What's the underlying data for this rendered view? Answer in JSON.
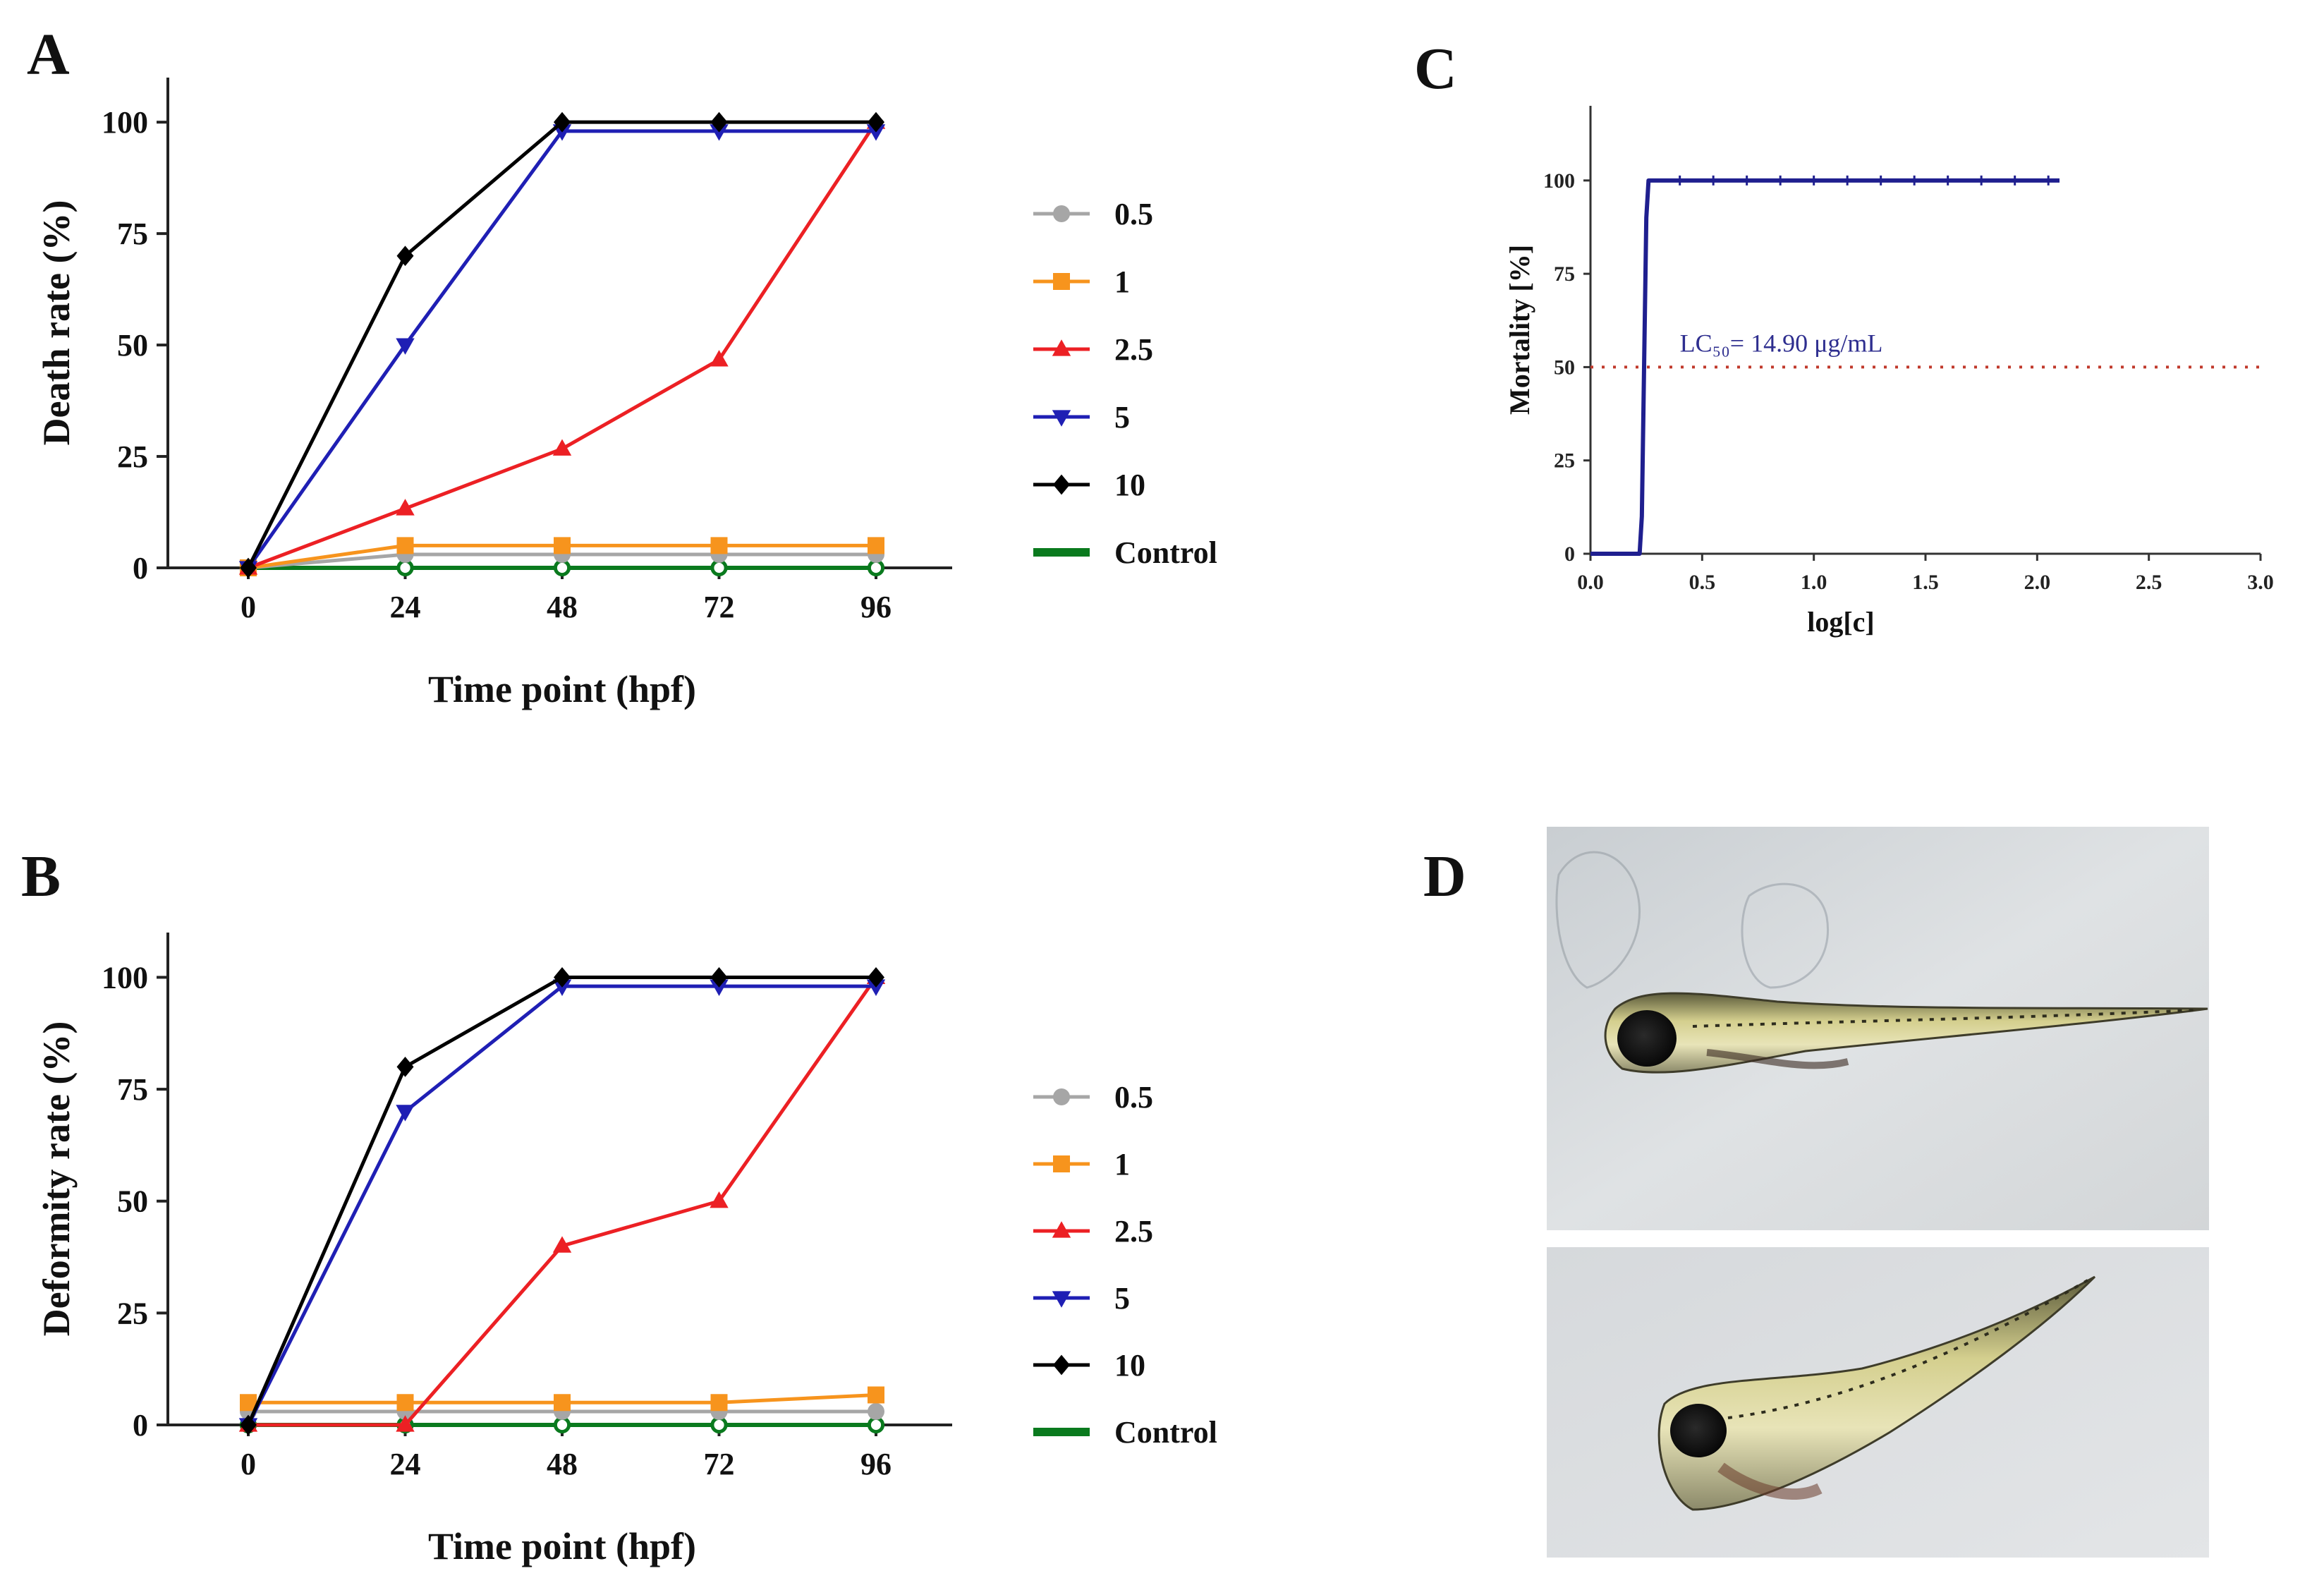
{
  "figure": {
    "panels": {
      "A": {
        "letter": "A"
      },
      "B": {
        "letter": "B"
      },
      "C": {
        "letter": "C"
      },
      "D": {
        "letter": "D"
      }
    }
  },
  "colors": {
    "c0_5": "#a6a6a6",
    "c1": "#f7941d",
    "c2_5": "#ec2024",
    "c5": "#1f1fb4",
    "c10": "#000000",
    "control": "#0a7a1e",
    "curve": "#1f1f8f",
    "lc50_line": "#c0392b"
  },
  "photos": {
    "top": "zebrafish-larva-normal",
    "bottom": "zebrafish-larva-deformed"
  },
  "chart_data": [
    {
      "id": "A",
      "type": "line",
      "xlabel": "Time point (hpf)",
      "ylabel": "Death rate (%)",
      "x": [
        0,
        24,
        48,
        72,
        96
      ],
      "xticks": [
        "0",
        "24",
        "48",
        "72",
        "96"
      ],
      "yticks": [
        "0",
        "25",
        "50",
        "75",
        "100"
      ],
      "ylim": [
        0,
        110
      ],
      "legend_title": "",
      "series": [
        {
          "name": "0.5",
          "marker": "circle",
          "color": "#a6a6a6",
          "values": [
            0,
            3,
            3,
            3,
            3
          ]
        },
        {
          "name": "1",
          "marker": "square",
          "color": "#f7941d",
          "values": [
            0,
            5,
            5,
            5,
            5
          ]
        },
        {
          "name": "2.5",
          "marker": "triangle-up",
          "color": "#ec2024",
          "values": [
            0,
            13.3,
            26.7,
            46.7,
            100
          ]
        },
        {
          "name": "5",
          "marker": "triangle-down",
          "color": "#1f1fb4",
          "values": [
            0,
            50,
            98,
            98,
            98
          ]
        },
        {
          "name": "10",
          "marker": "diamond",
          "color": "#000000",
          "values": [
            0,
            70,
            100,
            100,
            100
          ]
        },
        {
          "name": "Control",
          "marker": "open-circle",
          "color": "#0a7a1e",
          "values": [
            0,
            0,
            0,
            0,
            0
          ]
        }
      ]
    },
    {
      "id": "B",
      "type": "line",
      "xlabel": "Time point (hpf)",
      "ylabel": "Deformity rate (%)",
      "x": [
        0,
        24,
        48,
        72,
        96
      ],
      "xticks": [
        "0",
        "24",
        "48",
        "72",
        "96"
      ],
      "yticks": [
        "0",
        "25",
        "50",
        "75",
        "100"
      ],
      "ylim": [
        0,
        110
      ],
      "series": [
        {
          "name": "0.5",
          "marker": "circle",
          "color": "#a6a6a6",
          "values": [
            3,
            3,
            3,
            3,
            3
          ]
        },
        {
          "name": "1",
          "marker": "square",
          "color": "#f7941d",
          "values": [
            5,
            5,
            5,
            5,
            6.7
          ]
        },
        {
          "name": "2.5",
          "marker": "triangle-up",
          "color": "#ec2024",
          "values": [
            0,
            0,
            40,
            50,
            100
          ]
        },
        {
          "name": "5",
          "marker": "triangle-down",
          "color": "#1f1fb4",
          "values": [
            0,
            70,
            98,
            98,
            98
          ]
        },
        {
          "name": "10",
          "marker": "diamond",
          "color": "#000000",
          "values": [
            0,
            80,
            100,
            100,
            100
          ]
        },
        {
          "name": "Control",
          "marker": "open-circle",
          "color": "#0a7a1e",
          "values": [
            0,
            0,
            0,
            0,
            0
          ]
        }
      ]
    },
    {
      "id": "C",
      "type": "line",
      "xlabel": "log[c]",
      "ylabel": "Mortality [%]",
      "xticks": [
        "0.0",
        "0.5",
        "1.0",
        "1.5",
        "2.0",
        "2.5",
        "3.0"
      ],
      "xtick_values": [
        0,
        0.5,
        1.0,
        1.5,
        2.0,
        2.5,
        3.0
      ],
      "yticks": [
        "0",
        "25",
        "50",
        "75",
        "100"
      ],
      "xlim": [
        0,
        3
      ],
      "ylim": [
        0,
        120
      ],
      "curve_x": [
        0,
        0.22,
        0.23,
        0.24,
        0.25,
        0.26,
        0.3,
        2.1
      ],
      "curve_y": [
        0,
        0,
        10,
        50,
        90,
        100,
        100,
        100
      ],
      "minor_ticks_x": [
        0.4,
        0.55,
        0.7,
        0.85,
        1.0,
        1.15,
        1.3,
        1.45,
        1.6,
        1.75,
        1.9,
        2.05
      ],
      "reference_line_y": 50,
      "annotation": "LC₅₀= 14.90 μg/mL"
    }
  ]
}
